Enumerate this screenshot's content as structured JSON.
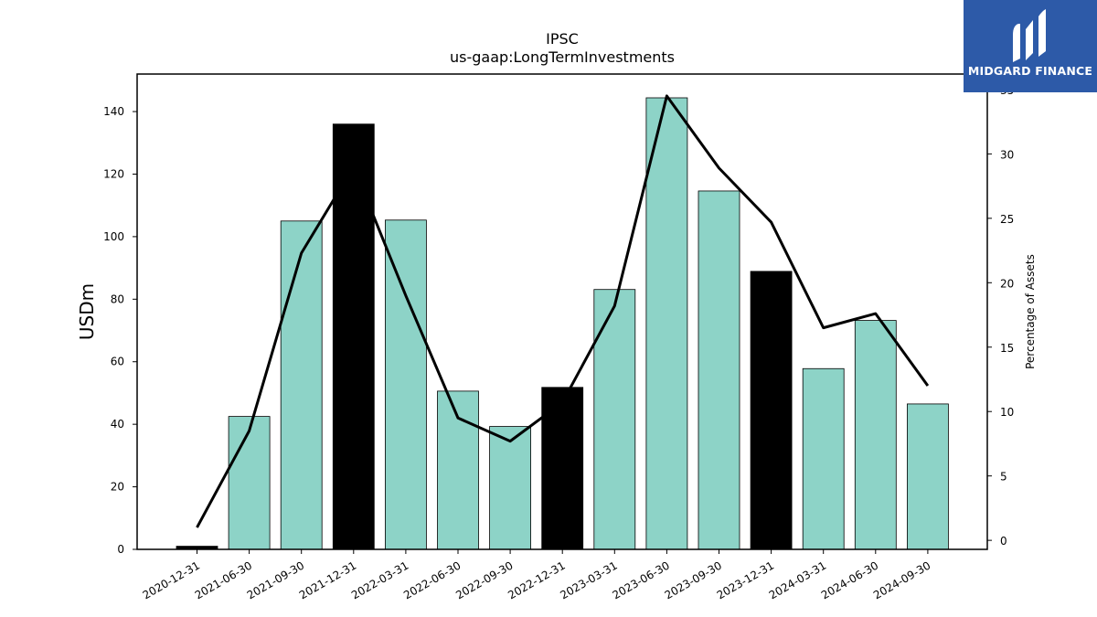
{
  "chart_data": {
    "type": "bar+line",
    "title": "IPSC",
    "subtitle": "us-gaap:LongTermInvestments",
    "ylabel": "USDm",
    "y2label": "Percentage of Assets",
    "ylim": [
      0,
      152
    ],
    "y2lim": [
      -0.7,
      36.2
    ],
    "yticks": [
      0,
      20,
      40,
      60,
      80,
      100,
      120,
      140
    ],
    "y2ticks": [
      0,
      5,
      10,
      15,
      20,
      25,
      30,
      35
    ],
    "categories": [
      "2020-12-31",
      "2021-06-30",
      "2021-09-30",
      "2021-12-31",
      "2022-03-31",
      "2022-06-30",
      "2022-09-30",
      "2022-12-31",
      "2023-03-31",
      "2023-06-30",
      "2023-09-30",
      "2023-12-31",
      "2024-03-31",
      "2024-06-30",
      "2024-09-30"
    ],
    "bars": {
      "values": [
        1.0,
        42.5,
        105.0,
        136.0,
        105.3,
        50.6,
        39.3,
        51.8,
        83.1,
        144.4,
        114.6,
        88.9,
        57.8,
        73.2,
        46.5
      ],
      "year_end": [
        true,
        false,
        false,
        true,
        false,
        false,
        false,
        true,
        false,
        false,
        false,
        true,
        false,
        false,
        false
      ]
    },
    "line": {
      "values": [
        1.0,
        8.5,
        22.3,
        29.0,
        19.0,
        9.5,
        7.7,
        10.7,
        18.2,
        34.5,
        28.9,
        24.7,
        16.5,
        17.6,
        12.0
      ]
    },
    "colors": {
      "bar": "#8dd3c7",
      "bar_year_end": "#000000",
      "line": "#000000"
    },
    "grid": false
  },
  "logo": {
    "text": "MIDGARD FINANCE",
    "background": "#2d5aa8"
  }
}
